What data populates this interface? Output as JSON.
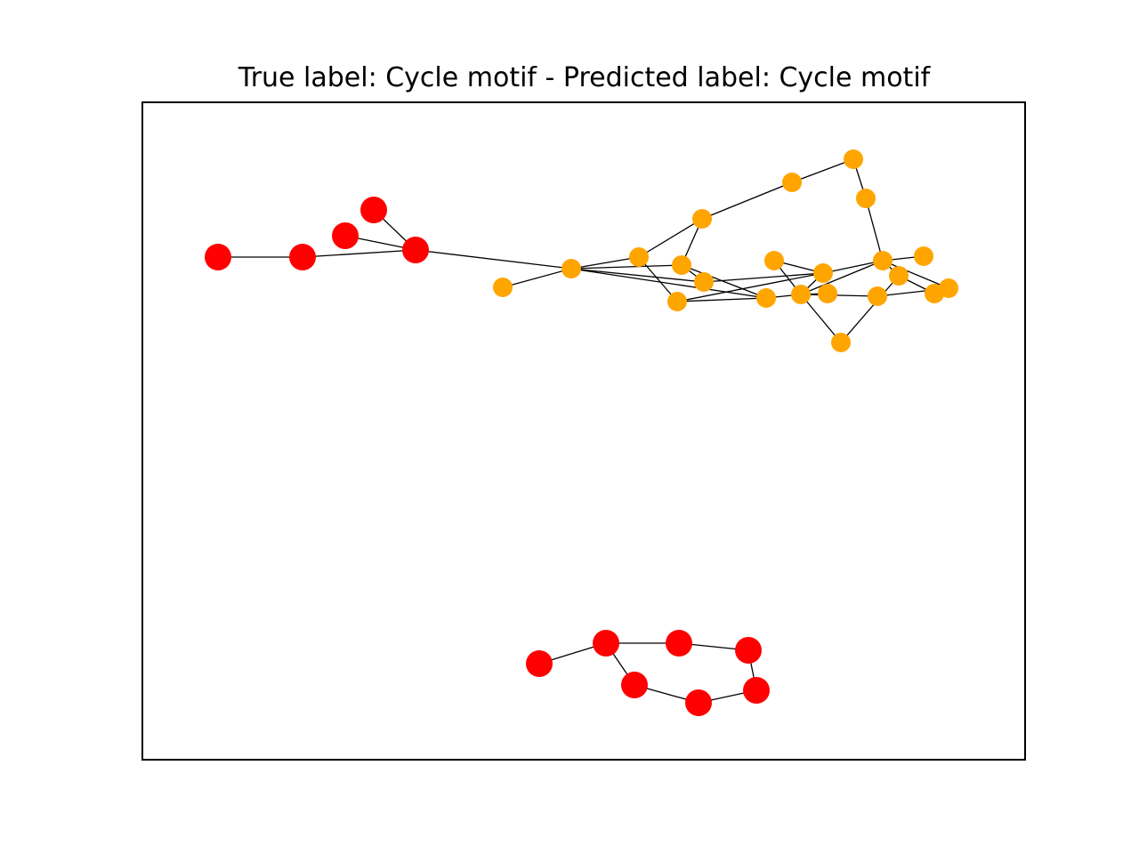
{
  "figure": {
    "title": "True label: Cycle motif - Predicted label: Cycle motif"
  },
  "graph": {
    "colors": {
      "motif_node": "#ff0000",
      "base_node": "#ffa500",
      "edge": "#000000",
      "frame": "#000000"
    },
    "node_groups": {
      "motif": [
        "r1",
        "r2",
        "r3",
        "r4",
        "r5",
        "r6",
        "r7",
        "r8",
        "r9",
        "r10",
        "r11",
        "r12"
      ],
      "base": [
        "o1",
        "o2",
        "o3",
        "o4",
        "o5",
        "o6",
        "o7",
        "o8",
        "o9",
        "o10",
        "o11",
        "o12",
        "o13",
        "o14",
        "o15",
        "o16",
        "o17",
        "o18",
        "o19",
        "o20",
        "o21",
        "o22"
      ]
    },
    "edges": [
      [
        "r1",
        "r2"
      ],
      [
        "r2",
        "r5"
      ],
      [
        "r4",
        "r5"
      ],
      [
        "r3",
        "r5"
      ],
      [
        "r5",
        "o2"
      ],
      [
        "o1",
        "o2"
      ],
      [
        "o2",
        "o3"
      ],
      [
        "o2",
        "o5"
      ],
      [
        "o2",
        "o8"
      ],
      [
        "o2",
        "o10"
      ],
      [
        "o3",
        "o4"
      ],
      [
        "o3",
        "o6"
      ],
      [
        "o4",
        "o5"
      ],
      [
        "o5",
        "o8"
      ],
      [
        "o5",
        "o10"
      ],
      [
        "o4",
        "o7"
      ],
      [
        "o7",
        "o9"
      ],
      [
        "o9",
        "o11"
      ],
      [
        "o11",
        "o12"
      ],
      [
        "o12",
        "o13"
      ],
      [
        "o6",
        "o10"
      ],
      [
        "o6",
        "o14"
      ],
      [
        "o14",
        "o13"
      ],
      [
        "o10",
        "o13"
      ],
      [
        "o13",
        "o18"
      ],
      [
        "o13",
        "o15"
      ],
      [
        "o15",
        "o16"
      ],
      [
        "o16",
        "o12"
      ],
      [
        "o14",
        "o12"
      ],
      [
        "o13",
        "o19"
      ],
      [
        "o12",
        "o17"
      ],
      [
        "o12",
        "o20"
      ],
      [
        "o20",
        "o21"
      ],
      [
        "o20",
        "o19"
      ],
      [
        "o13",
        "o22"
      ],
      [
        "o8",
        "o14"
      ],
      [
        "o14",
        "o18"
      ],
      [
        "r6",
        "r7"
      ],
      [
        "r7",
        "r8"
      ],
      [
        "r8",
        "r9"
      ],
      [
        "r9",
        "r11"
      ],
      [
        "r11",
        "r12"
      ],
      [
        "r12",
        "r10"
      ],
      [
        "r10",
        "r7"
      ]
    ]
  }
}
